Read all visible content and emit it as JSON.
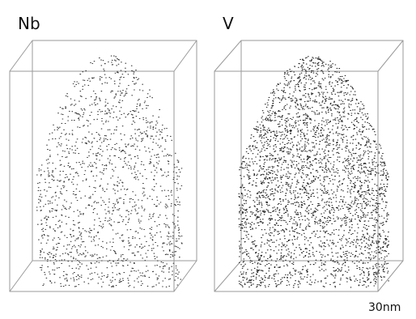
{
  "panels": [
    {
      "label": "Nb"
    },
    {
      "label": "V"
    }
  ],
  "scale_bar": "30nm"
}
